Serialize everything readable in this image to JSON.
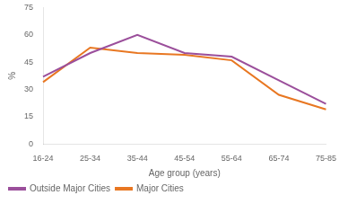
{
  "chart_data": {
    "type": "line",
    "categories": [
      "16-24",
      "25-34",
      "35-44",
      "45-54",
      "55-64",
      "65-74",
      "75-85"
    ],
    "series": [
      {
        "name": "Outside Major Cities",
        "color": "#9B4F9B",
        "values": [
          37,
          50,
          60,
          50,
          48,
          35,
          22
        ]
      },
      {
        "name": "Major Cities",
        "color": "#E87722",
        "values": [
          34,
          53,
          50,
          49,
          46,
          27,
          19
        ]
      }
    ],
    "xlabel": "Age group (years)",
    "ylabel": "%",
    "ylim": [
      0,
      75
    ],
    "yticks": [
      0,
      15,
      30,
      45,
      60,
      75
    ],
    "grid": false,
    "legend": "lower left"
  }
}
